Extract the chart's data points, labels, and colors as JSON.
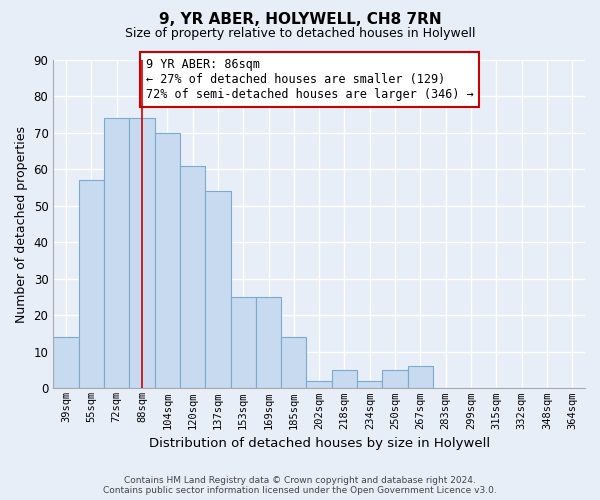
{
  "title": "9, YR ABER, HOLYWELL, CH8 7RN",
  "subtitle": "Size of property relative to detached houses in Holywell",
  "xlabel": "Distribution of detached houses by size in Holywell",
  "ylabel": "Number of detached properties",
  "categories": [
    "39sqm",
    "55sqm",
    "72sqm",
    "88sqm",
    "104sqm",
    "120sqm",
    "137sqm",
    "153sqm",
    "169sqm",
    "185sqm",
    "202sqm",
    "218sqm",
    "234sqm",
    "250sqm",
    "267sqm",
    "283sqm",
    "299sqm",
    "315sqm",
    "332sqm",
    "348sqm",
    "364sqm"
  ],
  "bar_heights": [
    14,
    57,
    74,
    74,
    70,
    61,
    54,
    25,
    25,
    14,
    2,
    5,
    2,
    5,
    6,
    0,
    0,
    0,
    0,
    0,
    0
  ],
  "bar_color": "#c8daf0",
  "bar_edge_color": "#7aaad0",
  "property_line_x": 3.0,
  "property_line_color": "#cc0000",
  "annotation_line1": "9 YR ABER: 86sqm",
  "annotation_line2": "← 27% of detached houses are smaller (129)",
  "annotation_line3": "72% of semi-detached houses are larger (346) →",
  "annotation_box_color": "#ffffff",
  "annotation_box_edge_color": "#cc0000",
  "ylim": [
    0,
    90
  ],
  "yticks": [
    0,
    10,
    20,
    30,
    40,
    50,
    60,
    70,
    80,
    90
  ],
  "footer_text": "Contains HM Land Registry data © Crown copyright and database right 2024.\nContains public sector information licensed under the Open Government Licence v3.0.",
  "background_color": "#e8eef8",
  "grid_color": "#ffffff",
  "title_fontsize": 11,
  "subtitle_fontsize": 9
}
